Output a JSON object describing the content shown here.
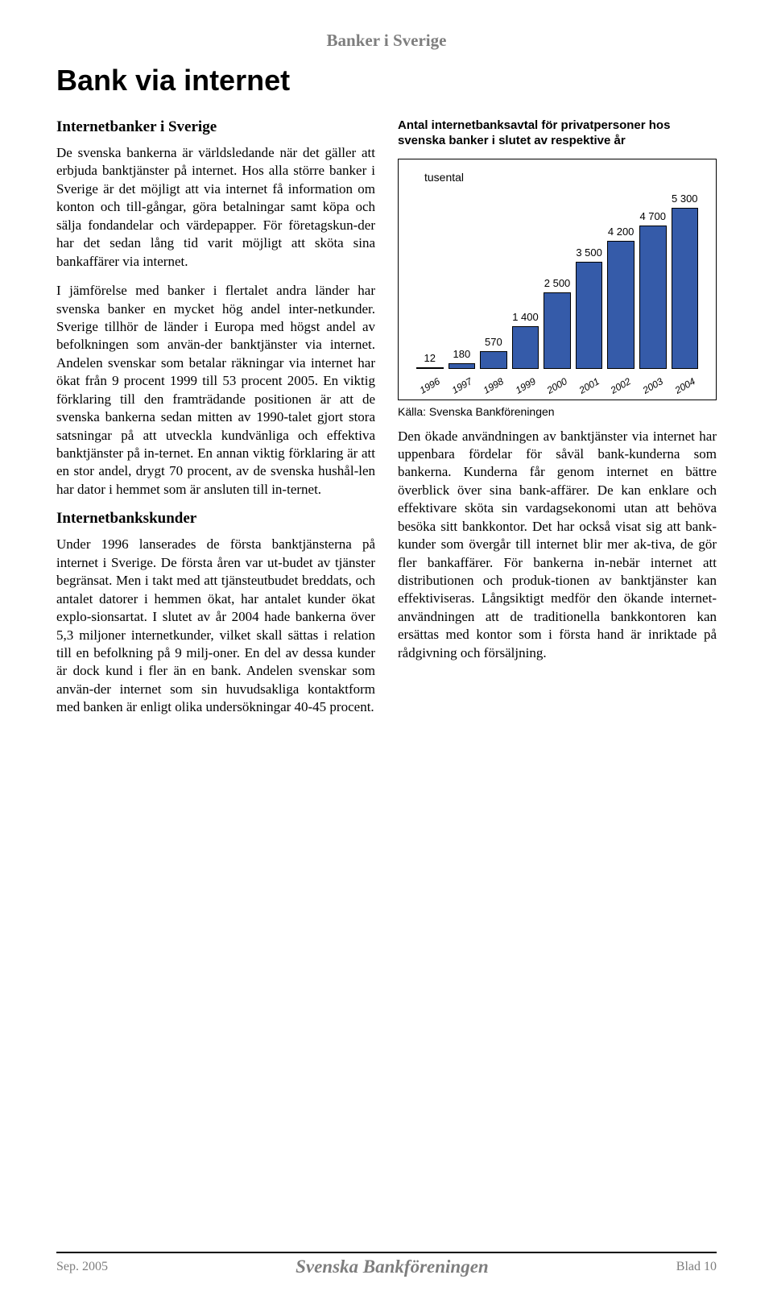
{
  "header": {
    "site_title": "Banker i Sverige"
  },
  "title": "Bank via internet",
  "left": {
    "h1": "Internetbanker i Sverige",
    "p1": "De svenska bankerna är världsledande när det gäller att erbjuda banktjänster på internet. Hos alla större banker i Sverige är det möjligt att via internet få information om konton och till-gångar, göra betalningar samt köpa och sälja fondandelar och värdepapper. För företagskun-der har det sedan lång tid varit möjligt att sköta sina bankaffärer via internet.",
    "p2": "I jämförelse med banker i flertalet andra länder har svenska banker en mycket hög andel inter-netkunder. Sverige tillhör de länder i Europa med högst andel av befolkningen som använ-der banktjänster via internet. Andelen svenskar som betalar räkningar via internet har ökat från 9 procent 1999 till 53 procent 2005. En viktig förklaring till den framträdande positionen är att de svenska bankerna sedan mitten av 1990-talet gjort stora satsningar på att utveckla kundvänliga och effektiva banktjänster på in-ternet. En annan viktig förklaring är att en stor andel, drygt 70 procent, av de svenska hushål-len har dator i hemmet som är ansluten till in-ternet.",
    "h2": "Internetbankskunder",
    "p3": "Under 1996 lanserades de första banktjänsterna på internet i Sverige. De första åren var ut-budet av tjänster begränsat. Men i takt med att tjänsteutbudet breddats, och antalet datorer i hemmen ökat, har antalet kunder ökat explo-sionsartat. I slutet av år 2004 hade bankerna över 5,3 miljoner internetkunder, vilket skall sättas i relation till en befolkning på 9 milj-oner. En del av dessa kunder är dock kund i fler än en bank. Andelen svenskar som använ-der internet som sin huvudsakliga kontaktform med banken är enligt olika undersökningar 40-45 procent."
  },
  "chart": {
    "title": "Antal internetbanksavtal för privatpersoner hos svenska banker i slutet av respektive år",
    "yaxis": "tusental",
    "type": "bar",
    "categories": [
      "1996",
      "1997",
      "1998",
      "1999",
      "2000",
      "2001",
      "2002",
      "2003",
      "2004"
    ],
    "values": [
      12,
      180,
      570,
      1400,
      2500,
      3500,
      4200,
      4700,
      5300
    ],
    "value_labels": [
      "12",
      "180",
      "570",
      "1 400",
      "2 500",
      "3 500",
      "4 200",
      "4 700",
      "5 300"
    ],
    "bar_color": "#355ba9",
    "bar_border": "#000000",
    "ymax": 5300,
    "background_color": "#ffffff",
    "source": "Källa: Svenska Bankföreningen"
  },
  "right": {
    "p1": "Den ökade användningen av banktjänster via internet har uppenbara fördelar för såväl bank-kunderna som bankerna. Kunderna får genom internet en bättre överblick över sina bank-affärer. De kan enklare och effektivare sköta sin vardagsekonomi utan att behöva besöka sitt bankkontor. Det har också visat sig att bank-kunder som övergår till internet blir mer ak-tiva, de gör fler bankaffärer. För bankerna in-nebär internet att distributionen och produk-tionen av banktjänster kan effektiviseras. Långsiktigt medför den ökande internet-användningen att de traditionella bankkontoren kan ersättas med kontor som i första hand är inriktade på rådgivning och försäljning."
  },
  "footer": {
    "left": "Sep. 2005",
    "center": "Svenska Bankföreningen",
    "right": "Blad 10"
  }
}
